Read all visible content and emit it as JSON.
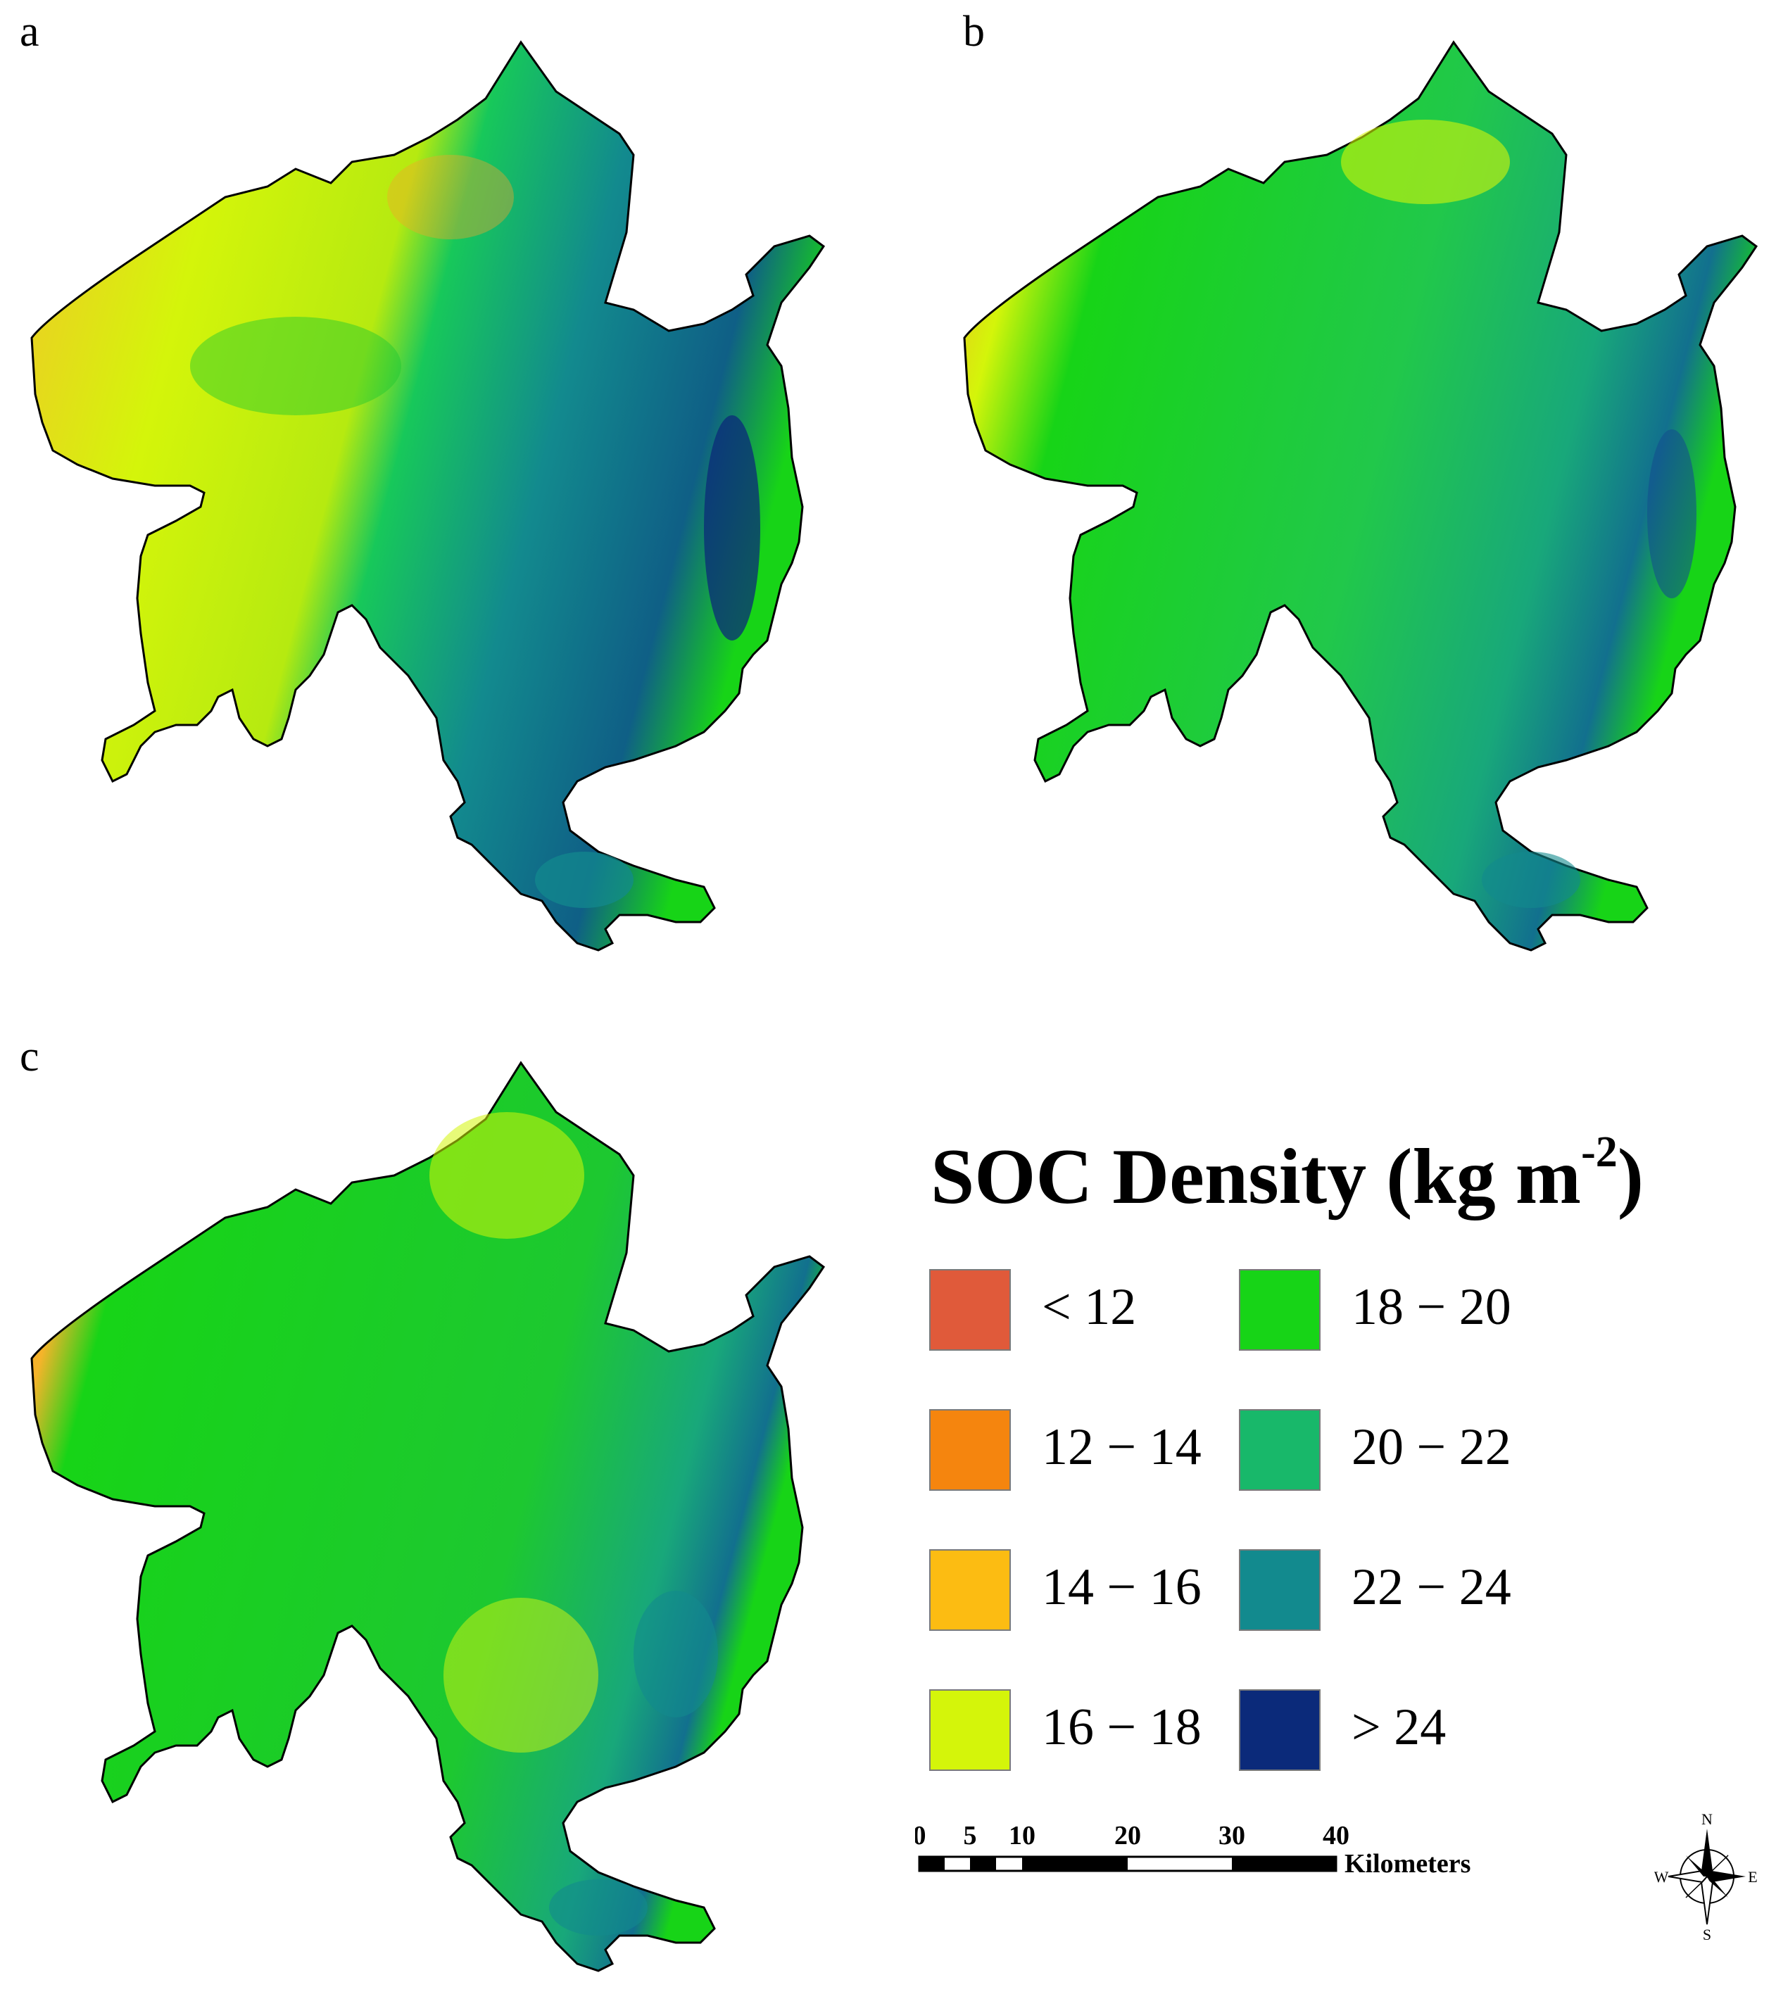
{
  "panels": [
    {
      "label": "a"
    },
    {
      "label": "b"
    },
    {
      "label": "c"
    }
  ],
  "legend": {
    "title": "SOC Density (kg m",
    "title_sup": "-2",
    "title_close": ")",
    "classes": [
      {
        "label": "<  12",
        "color": "#e05a3a"
      },
      {
        "label": "12 − 14",
        "color": "#f5850e"
      },
      {
        "label": "14 − 16",
        "color": "#fcbc12"
      },
      {
        "label": "16 − 18",
        "color": "#d4f50a"
      },
      {
        "label": "18 − 20",
        "color": "#17d417"
      },
      {
        "label": "20 − 22",
        "color": "#18b86a"
      },
      {
        "label": "22 − 24",
        "color": "#128a8e"
      },
      {
        "label": ">  24",
        "color": "#0b2a7a"
      }
    ]
  },
  "scalebar": {
    "ticks": [
      "0",
      "5",
      "10",
      "20",
      "30",
      "40"
    ],
    "unit": "Kilometers"
  },
  "compass": {
    "n": "N",
    "s": "S",
    "e": "E",
    "w": "W"
  }
}
